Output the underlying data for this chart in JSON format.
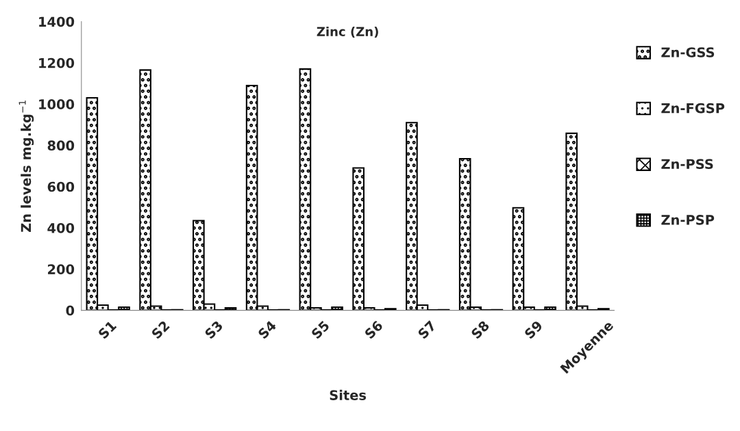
{
  "chart_data": {
    "type": "bar",
    "title": "Zinc (Zn)",
    "xlabel": "Sites",
    "ylabel": "Zn levels mg.kg$^{−1}$",
    "categories": [
      "S1",
      "S2",
      "S3",
      "S4",
      "S5",
      "S6",
      "S7",
      "S8",
      "S9",
      "Moyenne"
    ],
    "series": [
      {
        "name": "Zn-GSS",
        "color": "#000000",
        "values": [
          1030,
          1165,
          435,
          1090,
          1170,
          690,
          910,
          735,
          497,
          858
        ]
      },
      {
        "name": "Zn-FGSP",
        "color": "#000000",
        "values": [
          25,
          20,
          30,
          20,
          12,
          12,
          25,
          15,
          15,
          20
        ]
      },
      {
        "name": "Zn-PSS",
        "color": "#000000",
        "values": [
          2,
          2,
          2,
          2,
          2,
          2,
          2,
          2,
          2,
          2
        ]
      },
      {
        "name": "Zn-PSP",
        "color": "#000000",
        "values": [
          15,
          3,
          12,
          3,
          15,
          8,
          3,
          3,
          15,
          8
        ]
      }
    ],
    "ylim": [
      0,
      1400
    ],
    "yticks": [
      0,
      200,
      400,
      600,
      800,
      1000,
      1200,
      1400
    ],
    "grid": false,
    "legend": "right"
  }
}
